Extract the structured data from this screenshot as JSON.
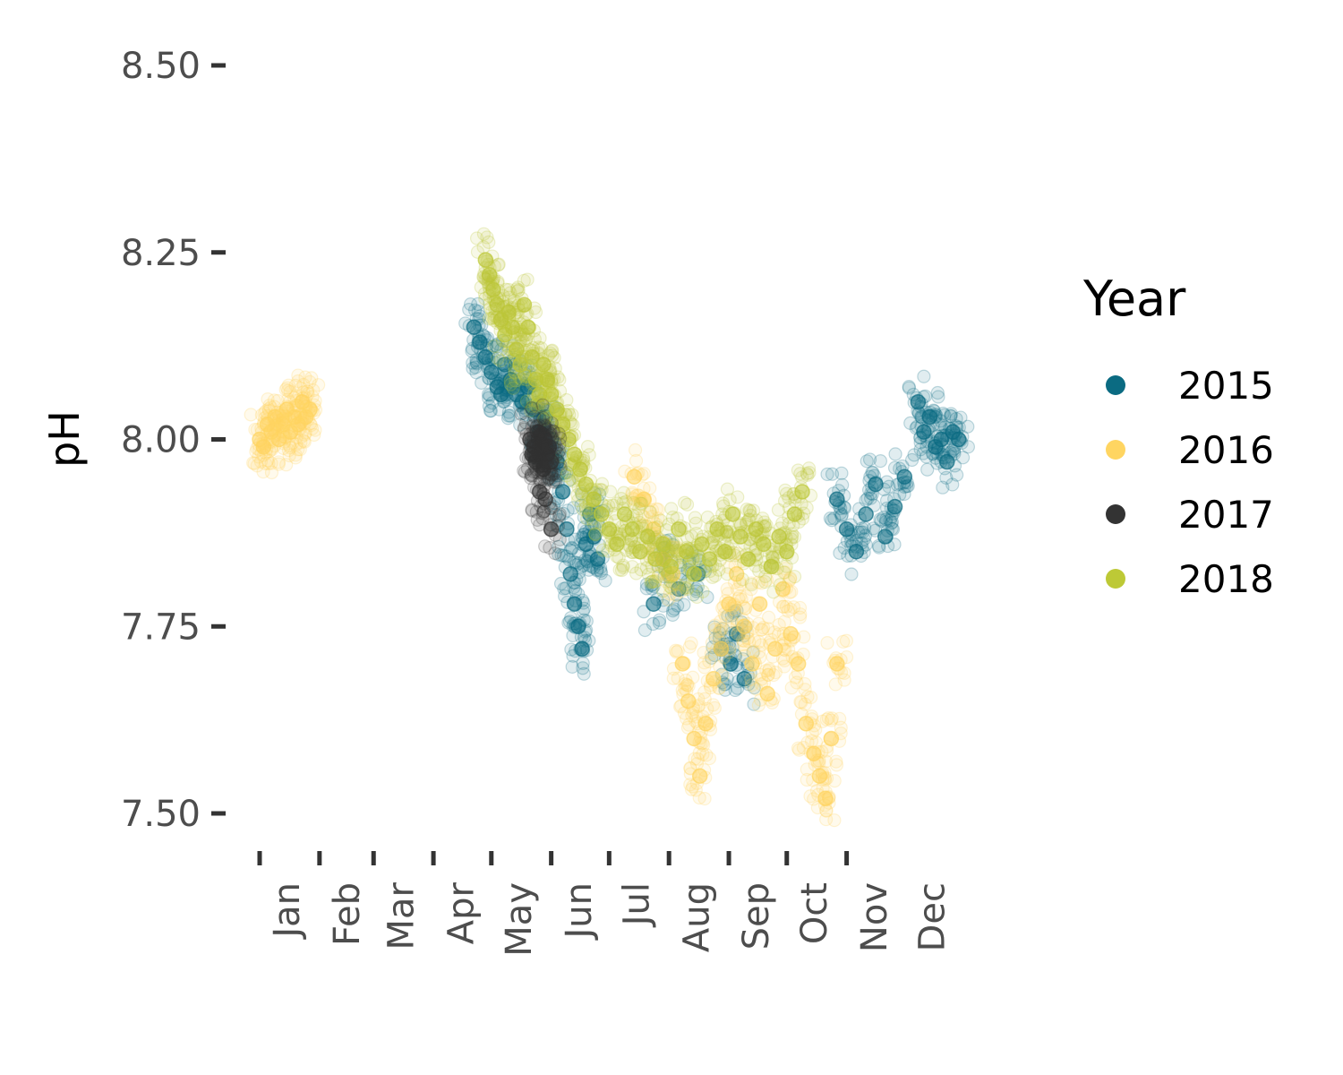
{
  "chart_data": {
    "type": "scatter",
    "ylabel": "pH",
    "xlabel": "",
    "ylim": [
      7.47,
      8.5
    ],
    "yticks": [
      7.5,
      7.75,
      8.0,
      8.25,
      8.5
    ],
    "ytick_labels": [
      "7.50",
      "7.75",
      "8.00",
      "8.25",
      "8.50"
    ],
    "x_unit": "day_of_year",
    "xlim": [
      1,
      365
    ],
    "xtick_labels": [
      "Jan",
      "Feb",
      "Mar",
      "Apr",
      "May",
      "Jun",
      "Jul",
      "Aug",
      "Sep",
      "Oct",
      "Nov",
      "Dec"
    ],
    "xtick_days": [
      15,
      46,
      74,
      105,
      135,
      166,
      196,
      227,
      258,
      288,
      319,
      349
    ],
    "xtick_mark_days": [
      1,
      32,
      60,
      91,
      121,
      152,
      182,
      213,
      244,
      274,
      305
    ],
    "grid": false,
    "legend": {
      "title": "Year",
      "position": "right"
    },
    "series": [
      {
        "name": "2015",
        "color": "#0b6b82",
        "points": [
          [
            112,
            8.15
          ],
          [
            115,
            8.13
          ],
          [
            118,
            8.11
          ],
          [
            121,
            8.09
          ],
          [
            124,
            8.07
          ],
          [
            126,
            8.06
          ],
          [
            128,
            8.1
          ],
          [
            131,
            8.08
          ],
          [
            134,
            8.06
          ],
          [
            137,
            8.05
          ],
          [
            140,
            8.07
          ],
          [
            143,
            8.04
          ],
          [
            146,
            8.01
          ],
          [
            149,
            8.03
          ],
          [
            152,
            8.0
          ],
          [
            155,
            7.97
          ],
          [
            158,
            7.93
          ],
          [
            160,
            7.88
          ],
          [
            162,
            7.82
          ],
          [
            164,
            7.78
          ],
          [
            166,
            7.75
          ],
          [
            168,
            7.72
          ],
          [
            170,
            7.86
          ],
          [
            172,
            7.9
          ],
          [
            174,
            7.87
          ],
          [
            176,
            7.84
          ],
          [
            205,
            7.78
          ],
          [
            210,
            7.84
          ],
          [
            218,
            7.8
          ],
          [
            228,
            7.82
          ],
          [
            240,
            7.72
          ],
          [
            245,
            7.7
          ],
          [
            248,
            7.74
          ],
          [
            252,
            7.68
          ],
          [
            300,
            7.92
          ],
          [
            305,
            7.88
          ],
          [
            310,
            7.85
          ],
          [
            315,
            7.9
          ],
          [
            320,
            7.94
          ],
          [
            325,
            7.87
          ],
          [
            330,
            7.91
          ],
          [
            335,
            7.95
          ],
          [
            342,
            8.05
          ],
          [
            345,
            8.01
          ],
          [
            348,
            8.03
          ],
          [
            351,
            7.99
          ],
          [
            354,
            8.0
          ],
          [
            357,
            7.97
          ],
          [
            360,
            8.01
          ],
          [
            363,
            8.0
          ]
        ]
      },
      {
        "name": "2016",
        "color": "#ffd561",
        "points": [
          [
            1,
            8.0
          ],
          [
            3,
            7.99
          ],
          [
            5,
            8.02
          ],
          [
            7,
            8.01
          ],
          [
            9,
            8.03
          ],
          [
            11,
            8.0
          ],
          [
            13,
            8.02
          ],
          [
            15,
            8.04
          ],
          [
            17,
            8.01
          ],
          [
            19,
            8.03
          ],
          [
            21,
            8.02
          ],
          [
            23,
            8.05
          ],
          [
            25,
            8.03
          ],
          [
            27,
            8.04
          ],
          [
            195,
            7.95
          ],
          [
            200,
            7.92
          ],
          [
            205,
            7.88
          ],
          [
            210,
            7.84
          ],
          [
            215,
            7.82
          ],
          [
            220,
            7.7
          ],
          [
            223,
            7.65
          ],
          [
            226,
            7.6
          ],
          [
            229,
            7.55
          ],
          [
            232,
            7.62
          ],
          [
            236,
            7.68
          ],
          [
            240,
            7.72
          ],
          [
            244,
            7.78
          ],
          [
            248,
            7.82
          ],
          [
            252,
            7.75
          ],
          [
            256,
            7.7
          ],
          [
            260,
            7.78
          ],
          [
            264,
            7.66
          ],
          [
            268,
            7.72
          ],
          [
            272,
            7.8
          ],
          [
            276,
            7.74
          ],
          [
            280,
            7.7
          ],
          [
            284,
            7.62
          ],
          [
            288,
            7.58
          ],
          [
            291,
            7.55
          ],
          [
            294,
            7.52
          ],
          [
            297,
            7.6
          ],
          [
            300,
            7.7
          ]
        ]
      },
      {
        "name": "2017",
        "color": "#333333",
        "points": [
          [
            141,
            8.0
          ],
          [
            142,
            7.98
          ],
          [
            143,
            7.99
          ],
          [
            144,
            7.97
          ],
          [
            145,
            8.01
          ],
          [
            146,
            7.98
          ],
          [
            147,
            7.99
          ],
          [
            148,
            7.96
          ],
          [
            149,
            8.0
          ],
          [
            150,
            7.98
          ],
          [
            151,
            7.99
          ],
          [
            152,
            7.97
          ],
          [
            146,
            7.93
          ],
          [
            149,
            7.92
          ],
          [
            152,
            7.88
          ]
        ]
      },
      {
        "name": "2018",
        "color": "#bdc936",
        "points": [
          [
            118,
            8.24
          ],
          [
            120,
            8.22
          ],
          [
            122,
            8.2
          ],
          [
            124,
            8.18
          ],
          [
            126,
            8.16
          ],
          [
            128,
            8.14
          ],
          [
            130,
            8.17
          ],
          [
            132,
            8.15
          ],
          [
            134,
            8.12
          ],
          [
            136,
            8.1
          ],
          [
            138,
            8.18
          ],
          [
            140,
            8.15
          ],
          [
            142,
            8.11
          ],
          [
            144,
            8.08
          ],
          [
            146,
            8.06
          ],
          [
            148,
            8.1
          ],
          [
            150,
            8.08
          ],
          [
            152,
            8.06
          ],
          [
            155,
            8.04
          ],
          [
            158,
            8.02
          ],
          [
            161,
            8.0
          ],
          [
            164,
            7.98
          ],
          [
            167,
            7.96
          ],
          [
            170,
            7.94
          ],
          [
            174,
            7.92
          ],
          [
            178,
            7.9
          ],
          [
            182,
            7.88
          ],
          [
            186,
            7.86
          ],
          [
            190,
            7.9
          ],
          [
            194,
            7.88
          ],
          [
            198,
            7.85
          ],
          [
            202,
            7.87
          ],
          [
            206,
            7.84
          ],
          [
            210,
            7.86
          ],
          [
            214,
            7.83
          ],
          [
            218,
            7.88
          ],
          [
            222,
            7.85
          ],
          [
            226,
            7.82
          ],
          [
            230,
            7.86
          ],
          [
            234,
            7.84
          ],
          [
            238,
            7.88
          ],
          [
            242,
            7.85
          ],
          [
            246,
            7.9
          ],
          [
            250,
            7.87
          ],
          [
            254,
            7.84
          ],
          [
            258,
            7.88
          ],
          [
            262,
            7.86
          ],
          [
            266,
            7.83
          ],
          [
            270,
            7.87
          ],
          [
            274,
            7.85
          ],
          [
            278,
            7.9
          ],
          [
            282,
            7.93
          ]
        ]
      }
    ]
  }
}
